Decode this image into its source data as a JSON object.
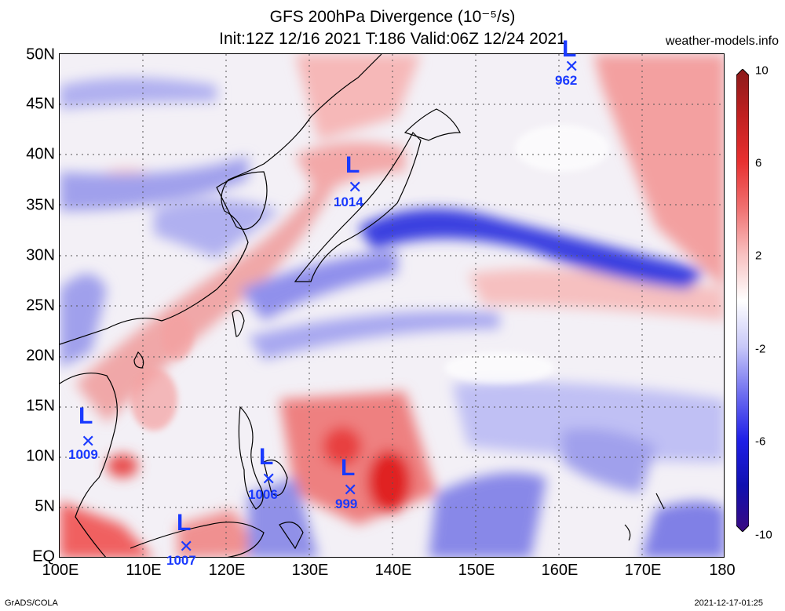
{
  "header": {
    "title_line1": "GFS 200hPa Divergence (10⁻⁵/s)",
    "title_line2": "Init:12Z 12/16 2021 T:186 Valid:06Z 12/24 2021",
    "site": "weather-models.info"
  },
  "axes": {
    "lat_labels": [
      "50N",
      "45N",
      "40N",
      "35N",
      "30N",
      "25N",
      "20N",
      "15N",
      "10N",
      "5N",
      "EQ"
    ],
    "lon_labels": [
      "100E",
      "110E",
      "120E",
      "130E",
      "140E",
      "150E",
      "160E",
      "170E",
      "180"
    ]
  },
  "colorbar": {
    "ticks": [
      "10",
      "6",
      "2",
      "-2",
      "-6",
      "-10"
    ],
    "colors_top_to_bottom": [
      "#8b1a1a",
      "#c02020",
      "#e83030",
      "#f07070",
      "#f8c0c0",
      "#ffffff",
      "#c8c8f8",
      "#7070f0",
      "#2020e8",
      "#1010b0",
      "#3a0a80"
    ]
  },
  "lows": [
    {
      "pressure": "962"
    },
    {
      "pressure": "1014"
    },
    {
      "pressure": "1009"
    },
    {
      "pressure": "1006"
    },
    {
      "pressure": "999"
    },
    {
      "pressure": "1007"
    }
  ],
  "footer": {
    "left": "GrADS/COLA",
    "right": "2021-12-17-01:25"
  }
}
